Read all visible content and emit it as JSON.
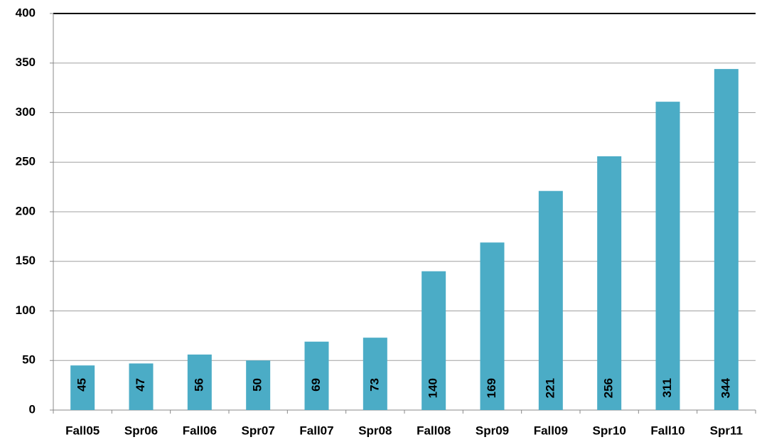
{
  "chart_data": {
    "type": "bar",
    "categories": [
      "Fall05",
      "Spr06",
      "Fall06",
      "Spr07",
      "Fall07",
      "Spr08",
      "Fall08",
      "Spr09",
      "Fall09",
      "Spr10",
      "Fall10",
      "Spr11"
    ],
    "values": [
      45,
      47,
      56,
      50,
      69,
      73,
      140,
      169,
      221,
      256,
      311,
      344
    ],
    "color": "#4bacc6",
    "ylim": [
      0,
      400
    ],
    "yticks": [
      0,
      50,
      100,
      150,
      200,
      250,
      300,
      350,
      400
    ],
    "grid": true
  }
}
